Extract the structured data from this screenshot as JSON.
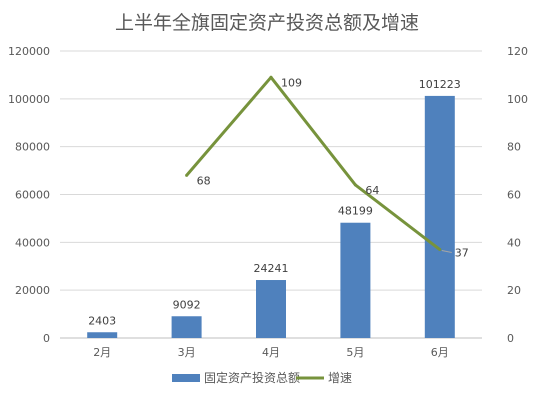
{
  "chart_data": {
    "type": "bar",
    "title": "上半年全旗固定资产投资总额及增速",
    "categories": [
      "2月",
      "3月",
      "4月",
      "5月",
      "6月"
    ],
    "series": [
      {
        "name": "固定资产投资总额",
        "type": "bar",
        "axis": "left",
        "color": "#4F81BD",
        "values": [
          2403,
          9092,
          24241,
          48199,
          101223
        ]
      },
      {
        "name": "增速",
        "type": "line",
        "axis": "right",
        "color": "#77933C",
        "values": [
          null,
          68,
          109,
          64,
          37
        ]
      }
    ],
    "ylim_left": [
      0,
      120000
    ],
    "yticks_left": [
      0,
      20000,
      40000,
      60000,
      80000,
      100000,
      120000
    ],
    "ylim_right": [
      0,
      120
    ],
    "yticks_right": [
      0,
      20,
      40,
      60,
      80,
      100,
      120
    ],
    "grid": true,
    "legend": "bottom"
  }
}
